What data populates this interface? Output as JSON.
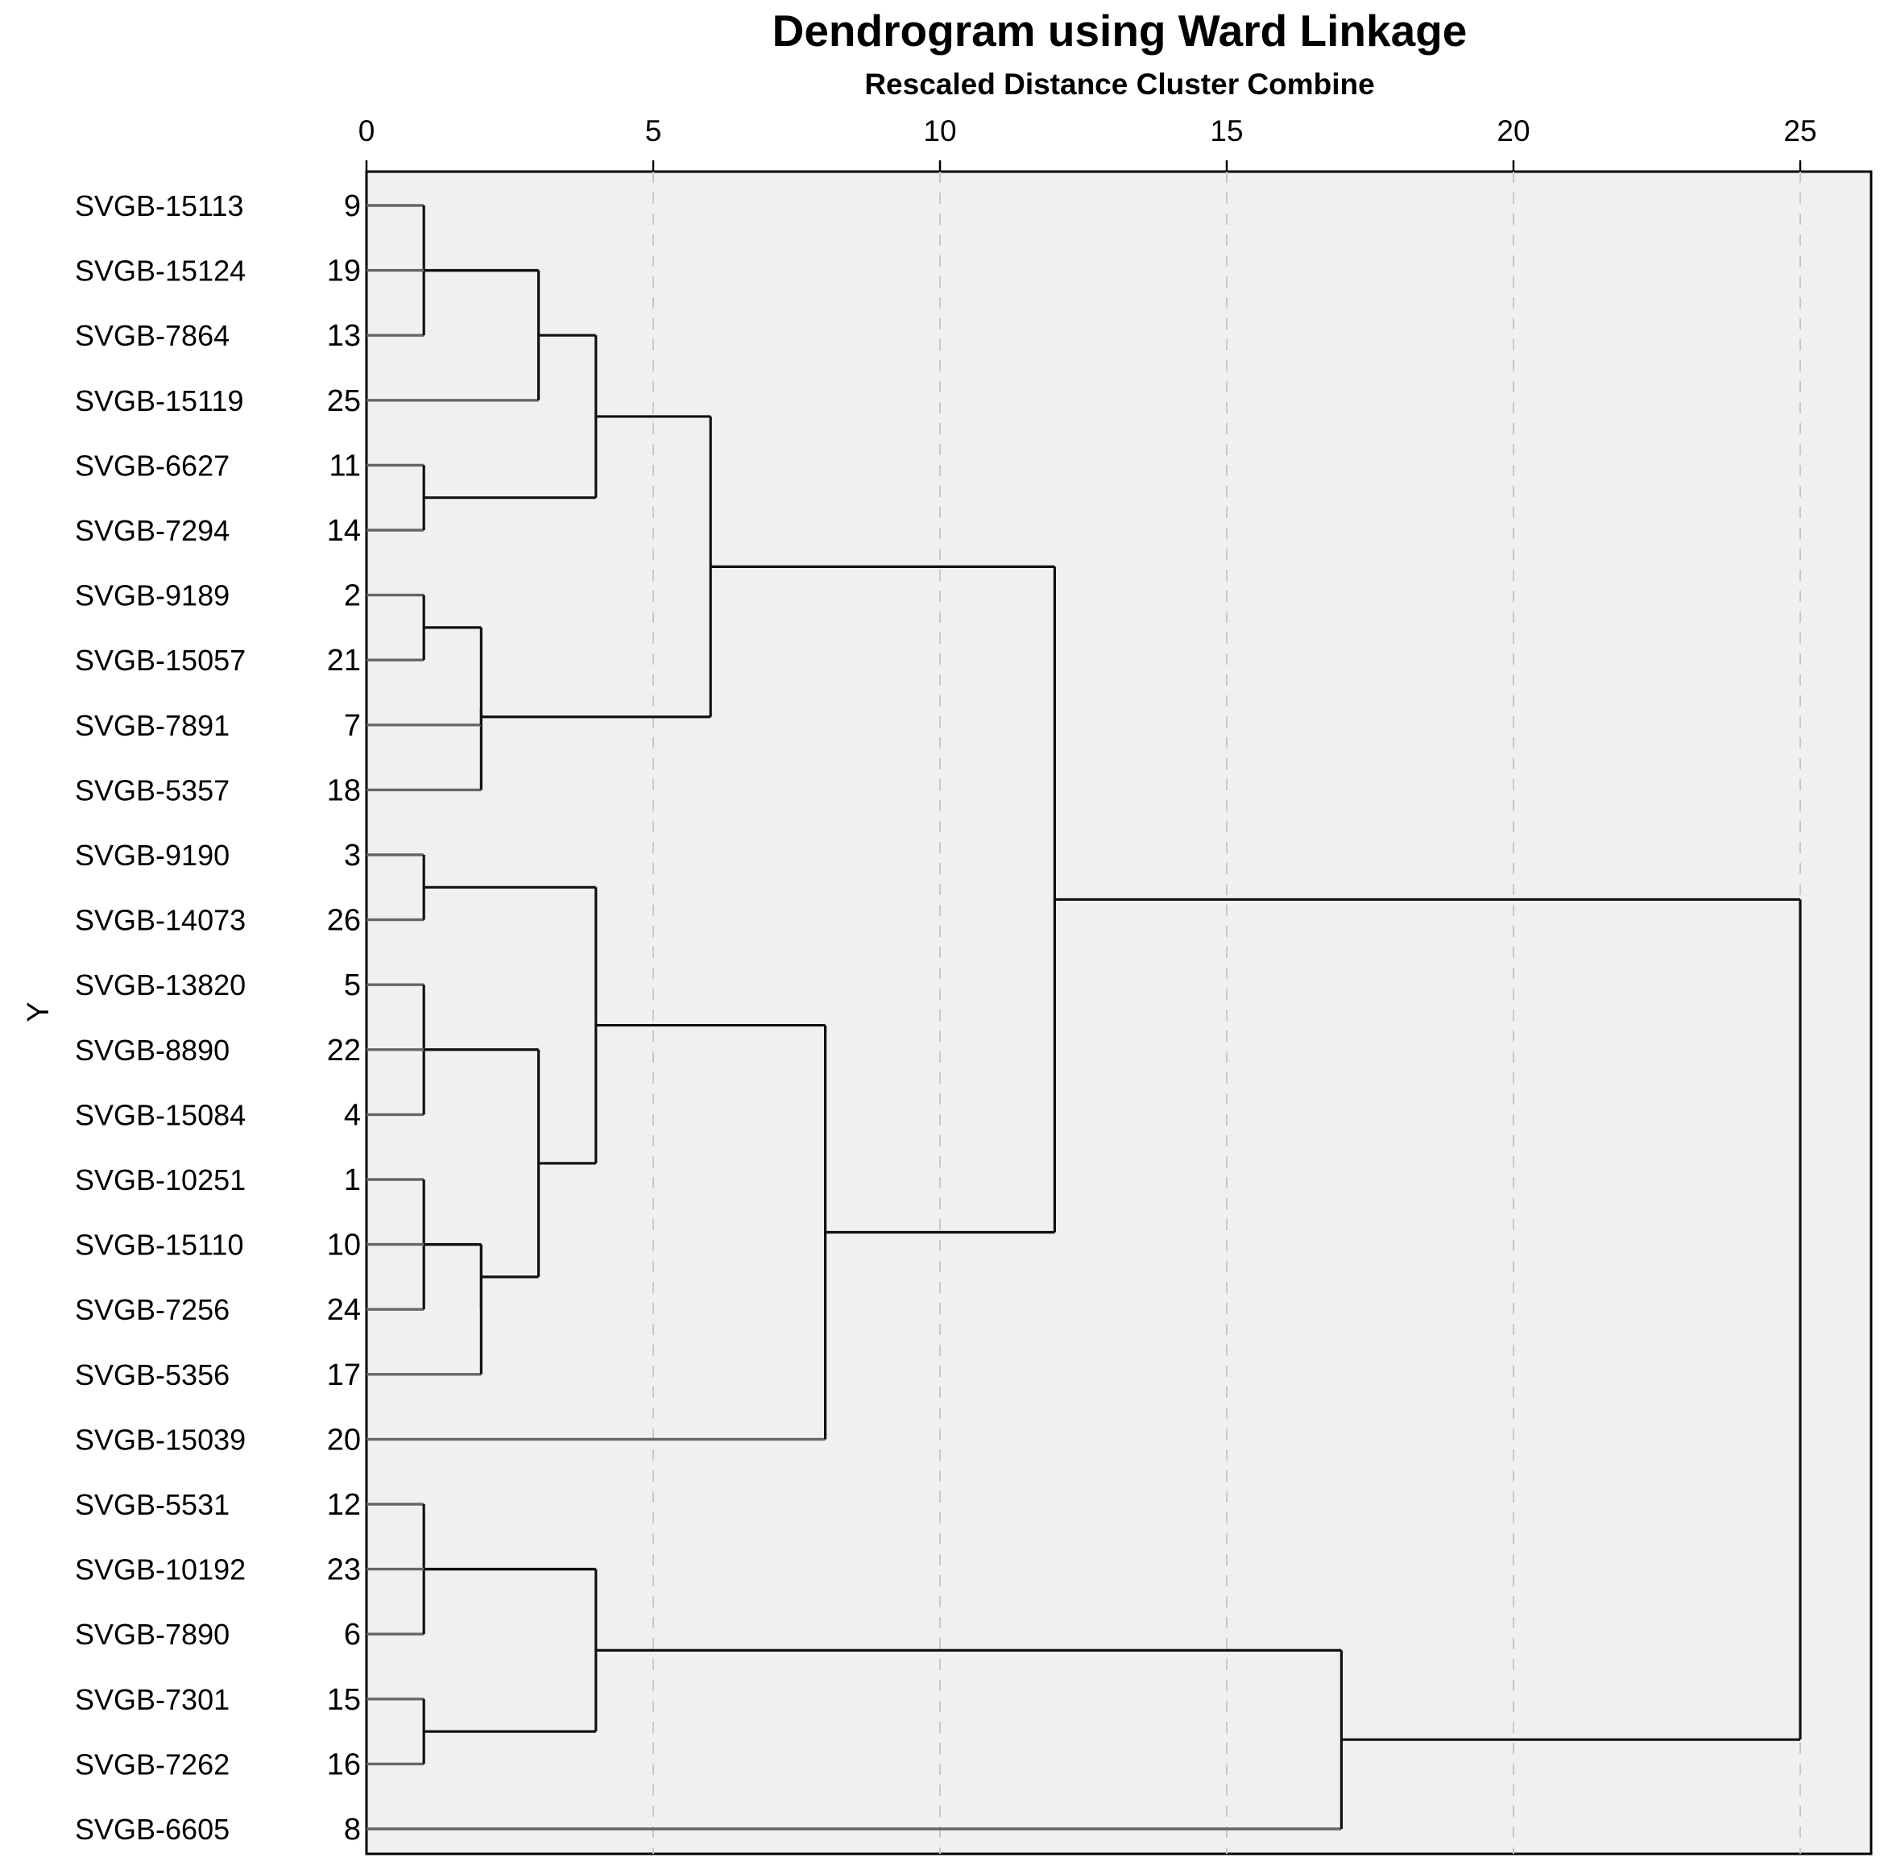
{
  "chart_data": {
    "type": "dendrogram",
    "title": "Dendrogram using Ward Linkage",
    "subtitle": "Rescaled Distance Cluster Combine",
    "ylabel": "Y",
    "xlim": [
      0,
      26.3
    ],
    "xticks": [
      0,
      5,
      10,
      15,
      20,
      25
    ],
    "leaves": [
      {
        "label": "SVGB-15113",
        "case": "9"
      },
      {
        "label": "SVGB-15124",
        "case": "19"
      },
      {
        "label": "SVGB-7864",
        "case": "13"
      },
      {
        "label": "SVGB-15119",
        "case": "25"
      },
      {
        "label": "SVGB-6627",
        "case": "11"
      },
      {
        "label": "SVGB-7294",
        "case": "14"
      },
      {
        "label": "SVGB-9189",
        "case": "2"
      },
      {
        "label": "SVGB-15057",
        "case": "21"
      },
      {
        "label": "SVGB-7891",
        "case": "7"
      },
      {
        "label": "SVGB-5357",
        "case": "18"
      },
      {
        "label": "SVGB-9190",
        "case": "3"
      },
      {
        "label": "SVGB-14073",
        "case": "26"
      },
      {
        "label": "SVGB-13820",
        "case": "5"
      },
      {
        "label": "SVGB-8890",
        "case": "22"
      },
      {
        "label": "SVGB-15084",
        "case": "4"
      },
      {
        "label": "SVGB-10251",
        "case": "1"
      },
      {
        "label": "SVGB-15110",
        "case": "10"
      },
      {
        "label": "SVGB-7256",
        "case": "24"
      },
      {
        "label": "SVGB-5356",
        "case": "17"
      },
      {
        "label": "SVGB-15039",
        "case": "20"
      },
      {
        "label": "SVGB-5531",
        "case": "12"
      },
      {
        "label": "SVGB-10192",
        "case": "23"
      },
      {
        "label": "SVGB-7890",
        "case": "6"
      },
      {
        "label": "SVGB-7301",
        "case": "15"
      },
      {
        "label": "SVGB-7262",
        "case": "16"
      },
      {
        "label": "SVGB-6605",
        "case": "8"
      }
    ],
    "merges": [
      {
        "id": "m1",
        "children": [
          "L0",
          "L2"
        ],
        "height": 1
      },
      {
        "id": "m2",
        "children": [
          "L1",
          "m1"
        ],
        "height": 3
      },
      {
        "id": "m3",
        "children": [
          "L4",
          "L5"
        ],
        "height": 1
      },
      {
        "id": "m4",
        "children": [
          "m2",
          "L3"
        ],
        "height": 3
      },
      {
        "id": "m5",
        "children": [
          "m4",
          "m3"
        ],
        "height": 4
      },
      {
        "id": "m6",
        "children": [
          "L6",
          "L7"
        ],
        "height": 1
      },
      {
        "id": "m7",
        "children": [
          "m6",
          "L9"
        ],
        "height": 2
      },
      {
        "id": "m8",
        "children": [
          "m7",
          "L8"
        ],
        "height": 2
      },
      {
        "id": "m9",
        "children": [
          "m5",
          "m8"
        ],
        "height": 6
      },
      {
        "id": "m10",
        "children": [
          "L10",
          "L11"
        ],
        "height": 1
      },
      {
        "id": "m11",
        "children": [
          "L12",
          "L14"
        ],
        "height": 1
      },
      {
        "id": "m12",
        "children": [
          "L15",
          "L17"
        ],
        "height": 1
      },
      {
        "id": "m13",
        "children": [
          "L16",
          "L18"
        ],
        "height": 2
      },
      {
        "id": "m14",
        "children": [
          "m12",
          "m13"
        ],
        "height": 2
      },
      {
        "id": "m15",
        "children": [
          "L13",
          "m11"
        ],
        "height": 3
      },
      {
        "id": "m16",
        "children": [
          "m15",
          "m14"
        ],
        "height": 3
      },
      {
        "id": "m17",
        "children": [
          "m10",
          "m16"
        ],
        "height": 4
      },
      {
        "id": "m18",
        "children": [
          "m17",
          "L19"
        ],
        "height": 8
      },
      {
        "id": "m19",
        "children": [
          "m9",
          "m18"
        ],
        "height": 12
      },
      {
        "id": "m20",
        "children": [
          "L20",
          "L22"
        ],
        "height": 1
      },
      {
        "id": "m21",
        "children": [
          "L23",
          "L24"
        ],
        "height": 1
      },
      {
        "id": "m22",
        "children": [
          "L21",
          "m20"
        ],
        "height": 4
      },
      {
        "id": "m23",
        "children": [
          "m22",
          "m21"
        ],
        "height": 4
      },
      {
        "id": "m24",
        "children": [
          "m23",
          "L25"
        ],
        "height": 17
      },
      {
        "id": "m25",
        "children": [
          "m19",
          "m24"
        ],
        "height": 25
      }
    ]
  }
}
